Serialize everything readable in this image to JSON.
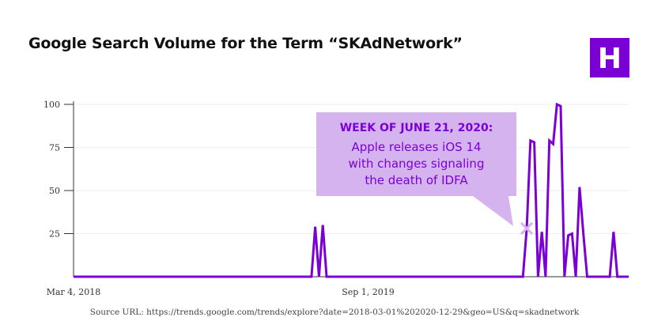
{
  "page": {
    "title": "Google Search Volume for the Term “SKAdNetwork”",
    "source": "Source URL: https://trends.google.com/trends/explore?date=2018-03-01%202020-12-29&geo=US&q=skadnetwork",
    "logo_letter": "H"
  },
  "colors": {
    "line": "#7b00d4",
    "logo_bg": "#7b00d4",
    "callout_bg": "#d5b3ef",
    "callout_text": "#7b00d4",
    "marker": "#d5b3ef",
    "axis": "#333333"
  },
  "chart_data": {
    "type": "line",
    "title": "Google Search Volume for the Term “SKAdNetwork”",
    "xlabel": "",
    "ylabel": "",
    "x_start": "2018-03-04",
    "x_end": "2020-12-27",
    "ylim": [
      0,
      100
    ],
    "yticks": [
      25,
      50,
      75,
      100
    ],
    "ytick_labels": [
      "25",
      "50",
      "75",
      "100"
    ],
    "xticks": [
      {
        "date": "2018-03-04",
        "label": "Mar 4, 2018"
      },
      {
        "date": "2019-09-01",
        "label": "Sep 1, 2019"
      }
    ],
    "grid": true,
    "series": [
      {
        "points": [
          [
            "2018-03-04",
            0
          ],
          [
            "2019-05-19",
            0
          ],
          [
            "2019-05-26",
            29
          ],
          [
            "2019-06-02",
            0
          ],
          [
            "2019-06-09",
            30
          ],
          [
            "2019-06-16",
            0
          ],
          [
            "2020-06-14",
            0
          ],
          [
            "2020-06-21",
            28
          ],
          [
            "2020-06-28",
            79
          ],
          [
            "2020-07-05",
            78
          ],
          [
            "2020-07-12",
            0
          ],
          [
            "2020-07-19",
            26
          ],
          [
            "2020-07-26",
            0
          ],
          [
            "2020-08-02",
            79
          ],
          [
            "2020-08-09",
            77
          ],
          [
            "2020-08-16",
            100
          ],
          [
            "2020-08-23",
            99
          ],
          [
            "2020-08-30",
            0
          ],
          [
            "2020-09-06",
            24
          ],
          [
            "2020-09-13",
            25
          ],
          [
            "2020-09-20",
            0
          ],
          [
            "2020-09-27",
            52
          ],
          [
            "2020-10-04",
            25
          ],
          [
            "2020-10-11",
            0
          ],
          [
            "2020-11-22",
            0
          ],
          [
            "2020-11-29",
            26
          ],
          [
            "2020-12-06",
            0
          ],
          [
            "2020-12-27",
            0
          ]
        ]
      }
    ],
    "annotation": {
      "date": "2020-06-21",
      "value": 28,
      "heading": "WEEK OF JUNE 21, 2020:",
      "lines": [
        "Apple releases iOS 14",
        "with changes signaling",
        "the death of IDFA"
      ]
    }
  }
}
